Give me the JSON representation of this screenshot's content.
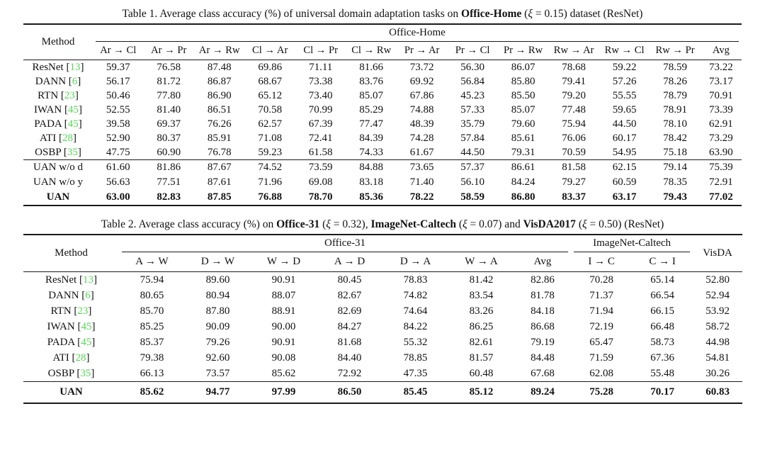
{
  "page": {
    "background": "#ffffff",
    "text_color": "#111111",
    "citation_color": "#53d953"
  },
  "tables": [
    {
      "id": "table1",
      "caption": [
        {
          "text": "Table 1. Average class accuracy (%) of universal domain adaptation tasks on ",
          "style": "normal"
        },
        {
          "text": "Office-Home",
          "style": "bold"
        },
        {
          "text": " (",
          "style": "normal"
        },
        {
          "text": "ξ",
          "style": "italic"
        },
        {
          "text": " = 0.15) dataset (ResNet)",
          "style": "normal"
        }
      ],
      "method_header": "Method",
      "groups": [
        {
          "label": "Office-Home",
          "span": 13
        }
      ],
      "trailing_column": null,
      "columns": [
        "Ar → Cl",
        "Ar → Pr",
        "Ar → Rw",
        "Cl → Ar",
        "Cl → Pr",
        "Cl → Rw",
        "Pr → Ar",
        "Pr → Cl",
        "Pr → Rw",
        "Rw → Ar",
        "Rw → Cl",
        "Rw → Pr",
        "Avg"
      ],
      "sections": [
        {
          "rows": [
            {
              "method": "ResNet",
              "cite": "13",
              "values": [
                "59.37",
                "76.58",
                "87.48",
                "69.86",
                "71.11",
                "81.66",
                "73.72",
                "56.30",
                "86.07",
                "78.68",
                "59.22",
                "78.59",
                "73.22"
              ]
            },
            {
              "method": "DANN",
              "cite": "6",
              "values": [
                "56.17",
                "81.72",
                "86.87",
                "68.67",
                "73.38",
                "83.76",
                "69.92",
                "56.84",
                "85.80",
                "79.41",
                "57.26",
                "78.26",
                "73.17"
              ]
            },
            {
              "method": "RTN",
              "cite": "23",
              "values": [
                "50.46",
                "77.80",
                "86.90",
                "65.12",
                "73.40",
                "85.07",
                "67.86",
                "45.23",
                "85.50",
                "79.20",
                "55.55",
                "78.79",
                "70.91"
              ]
            },
            {
              "method": "IWAN",
              "cite": "45",
              "values": [
                "52.55",
                "81.40",
                "86.51",
                "70.58",
                "70.99",
                "85.29",
                "74.88",
                "57.33",
                "85.07",
                "77.48",
                "59.65",
                "78.91",
                "73.39"
              ]
            },
            {
              "method": "PADA",
              "cite": "45",
              "values": [
                "39.58",
                "69.37",
                "76.26",
                "62.57",
                "67.39",
                "77.47",
                "48.39",
                "35.79",
                "79.60",
                "75.94",
                "44.50",
                "78.10",
                "62.91"
              ]
            },
            {
              "method": "ATI",
              "cite": "28",
              "values": [
                "52.90",
                "80.37",
                "85.91",
                "71.08",
                "72.41",
                "84.39",
                "74.28",
                "57.84",
                "85.61",
                "76.06",
                "60.17",
                "78.42",
                "73.29"
              ]
            },
            {
              "method": "OSBP",
              "cite": "35",
              "values": [
                "47.75",
                "60.90",
                "76.78",
                "59.23",
                "61.58",
                "74.33",
                "61.67",
                "44.50",
                "79.31",
                "70.59",
                "54.95",
                "75.18",
                "63.90"
              ]
            }
          ]
        },
        {
          "rows": [
            {
              "method": "UAN w/o d",
              "cite": null,
              "values": [
                "61.60",
                "81.86",
                "87.67",
                "74.52",
                "73.59",
                "84.88",
                "73.65",
                "57.37",
                "86.61",
                "81.58",
                "62.15",
                "79.14",
                "75.39"
              ]
            },
            {
              "method": "UAN w/o y",
              "cite": null,
              "values": [
                "56.63",
                "77.51",
                "87.61",
                "71.96",
                "69.08",
                "83.18",
                "71.40",
                "56.10",
                "84.24",
                "79.27",
                "60.59",
                "78.35",
                "72.91"
              ]
            },
            {
              "method": "UAN",
              "cite": null,
              "bold": true,
              "values": [
                "63.00",
                "82.83",
                "87.85",
                "76.88",
                "78.70",
                "85.36",
                "78.22",
                "58.59",
                "86.80",
                "83.37",
                "63.17",
                "79.43",
                "77.02"
              ]
            }
          ]
        }
      ]
    },
    {
      "id": "table2",
      "caption": [
        {
          "text": "Table 2. Average class accuracy (%) on ",
          "style": "normal"
        },
        {
          "text": "Office-31",
          "style": "bold"
        },
        {
          "text": " (",
          "style": "normal"
        },
        {
          "text": "ξ",
          "style": "italic"
        },
        {
          "text": " = 0.32), ",
          "style": "normal"
        },
        {
          "text": "ImageNet-Caltech",
          "style": "bold"
        },
        {
          "text": " (",
          "style": "normal"
        },
        {
          "text": "ξ",
          "style": "italic"
        },
        {
          "text": " = 0.07) and ",
          "style": "normal"
        },
        {
          "text": "VisDA2017",
          "style": "bold"
        },
        {
          "text": " (",
          "style": "normal"
        },
        {
          "text": "ξ",
          "style": "italic"
        },
        {
          "text": " = 0.50) (ResNet)",
          "style": "normal"
        }
      ],
      "method_header": "Method",
      "groups": [
        {
          "label": "Office-31",
          "span": 7
        },
        {
          "label": "ImageNet-Caltech",
          "span": 2
        }
      ],
      "trailing_column": "VisDA",
      "columns": [
        "A → W",
        "D → W",
        "W → D",
        "A → D",
        "D → A",
        "W → A",
        "Avg",
        "I → C",
        "C → I"
      ],
      "sections": [
        {
          "rows": [
            {
              "method": "ResNet",
              "cite": "13",
              "values": [
                "75.94",
                "89.60",
                "90.91",
                "80.45",
                "78.83",
                "81.42",
                "82.86",
                "70.28",
                "65.14",
                "52.80"
              ]
            },
            {
              "method": "DANN",
              "cite": "6",
              "values": [
                "80.65",
                "80.94",
                "88.07",
                "82.67",
                "74.82",
                "83.54",
                "81.78",
                "71.37",
                "66.54",
                "52.94"
              ]
            },
            {
              "method": "RTN",
              "cite": "23",
              "values": [
                "85.70",
                "87.80",
                "88.91",
                "82.69",
                "74.64",
                "83.26",
                "84.18",
                "71.94",
                "66.15",
                "53.92"
              ]
            },
            {
              "method": "IWAN",
              "cite": "45",
              "values": [
                "85.25",
                "90.09",
                "90.00",
                "84.27",
                "84.22",
                "86.25",
                "86.68",
                "72.19",
                "66.48",
                "58.72"
              ]
            },
            {
              "method": "PADA",
              "cite": "45",
              "values": [
                "85.37",
                "79.26",
                "90.91",
                "81.68",
                "55.32",
                "82.61",
                "79.19",
                "65.47",
                "58.73",
                "44.98"
              ]
            },
            {
              "method": "ATI",
              "cite": "28",
              "values": [
                "79.38",
                "92.60",
                "90.08",
                "84.40",
                "78.85",
                "81.57",
                "84.48",
                "71.59",
                "67.36",
                "54.81"
              ]
            },
            {
              "method": "OSBP",
              "cite": "35",
              "values": [
                "66.13",
                "73.57",
                "85.62",
                "72.92",
                "47.35",
                "60.48",
                "67.68",
                "62.08",
                "55.48",
                "30.26"
              ]
            }
          ]
        },
        {
          "rows": [
            {
              "method": "UAN",
              "cite": null,
              "bold": true,
              "values": [
                "85.62",
                "94.77",
                "97.99",
                "86.50",
                "85.45",
                "85.12",
                "89.24",
                "75.28",
                "70.17",
                "60.83"
              ]
            }
          ]
        }
      ]
    }
  ]
}
